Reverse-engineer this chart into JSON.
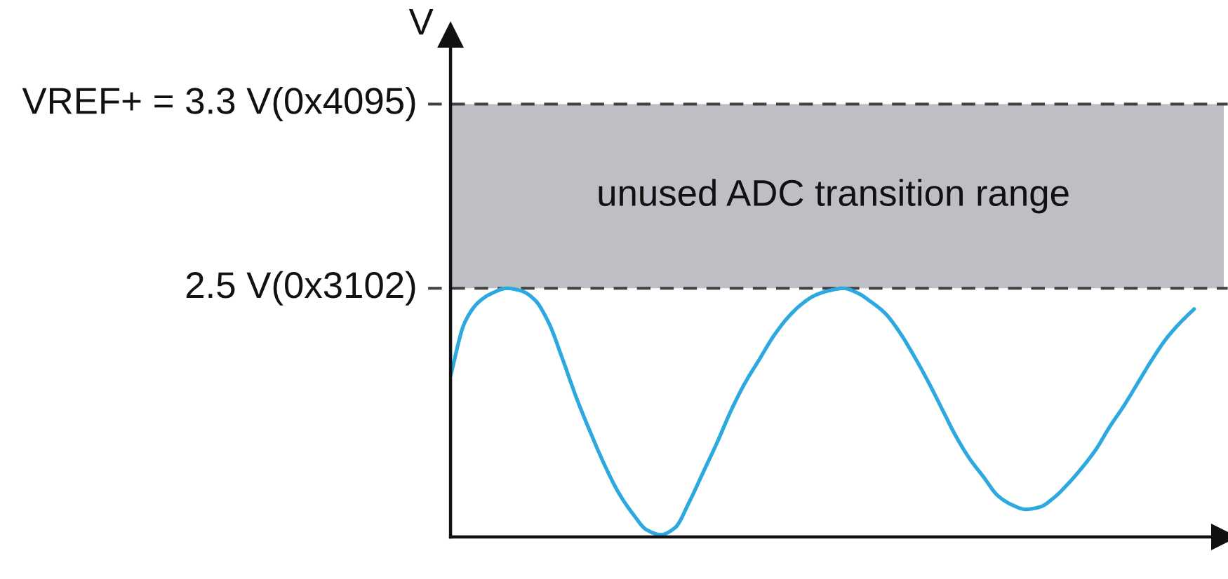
{
  "chart_data": {
    "type": "line",
    "annotations": [
      "V"
    ],
    "categories": [
      null,
      null,
      null,
      null,
      null,
      null,
      null,
      null,
      null,
      null,
      null,
      null,
      null,
      null,
      null,
      null,
      null,
      null,
      null,
      null,
      null,
      null,
      null,
      null,
      null,
      null,
      null,
      null,
      null,
      null,
      null,
      null,
      null,
      null,
      null,
      null,
      null,
      null,
      null,
      null,
      null,
      null,
      null,
      null,
      null,
      null,
      null,
      null,
      null,
      null,
      null,
      null,
      null,
      null
    ],
    "series": [
      {
        "color": "#2ea9df",
        "values": [
          2.12,
          2.35,
          2.44,
          2.48,
          2.5,
          2.49,
          2.45,
          2.35,
          2.19,
          2.02,
          1.87,
          1.73,
          1.61,
          1.52,
          1.45,
          1.43,
          1.46,
          1.57,
          1.7,
          1.83,
          1.97,
          2.09,
          2.19,
          2.29,
          2.37,
          2.43,
          2.47,
          2.49,
          2.5,
          2.48,
          2.44,
          2.39,
          2.31,
          2.21,
          2.1,
          1.98,
          1.86,
          1.76,
          1.68,
          1.6,
          1.56,
          1.54,
          1.55,
          1.59,
          1.65,
          1.72,
          1.8,
          1.9,
          1.99,
          2.09,
          2.19,
          2.28,
          2.35,
          2.41
        ]
      }
    ],
    "ylim": [
      1.42,
      3.6
    ],
    "ref_lines": [
      {
        "axis": "y",
        "value": 3.3,
        "label": "VREF+ = 3.3 V(0x4095)",
        "line_style": "dashed",
        "color": "#404040"
      },
      {
        "axis": "y",
        "value": 2.5,
        "label": "2.5 V(0x3102)",
        "line_style": "dashed",
        "color": "#404040"
      }
    ],
    "bands": [
      {
        "axis": "y",
        "from": 2.5,
        "to": 3.3,
        "label": "unused ADC transition range",
        "color": "#bdbfc4"
      }
    ]
  }
}
